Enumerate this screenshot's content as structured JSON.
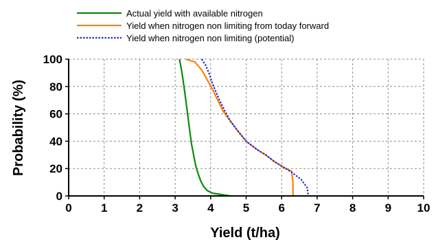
{
  "chart_data": {
    "type": "line",
    "title": "",
    "xlabel": "Yield (t/ha)",
    "ylabel": "Probability (%)",
    "xlim": [
      0,
      10
    ],
    "ylim": [
      0,
      100
    ],
    "xticks": [
      "0",
      "1",
      "2",
      "3",
      "4",
      "5",
      "6",
      "7",
      "8",
      "9",
      "10"
    ],
    "yticks": [
      "0",
      "20",
      "40",
      "60",
      "80",
      "100"
    ],
    "grid": true,
    "legend_position": "top",
    "series": [
      {
        "name": "Actual yield with available nitrogen",
        "color": "#0a8a0a",
        "dash": "solid",
        "x": [
          3.12,
          3.18,
          3.22,
          3.26,
          3.3,
          3.34,
          3.38,
          3.42,
          3.46,
          3.52,
          3.58,
          3.65,
          3.72,
          3.8,
          3.9,
          4.05,
          4.3,
          4.55
        ],
        "y": [
          100,
          92,
          85,
          78,
          70,
          62,
          54,
          46,
          38,
          30,
          22,
          16,
          11,
          7,
          4,
          2,
          1,
          0
        ]
      },
      {
        "name": "Yield when nitrogen non limiting from today forward",
        "color": "#ff8000",
        "dash": "solid",
        "x": [
          3.3,
          3.55,
          3.75,
          3.9,
          4.05,
          4.2,
          4.35,
          4.55,
          4.75,
          5.0,
          5.3,
          5.55,
          5.8,
          6.05,
          6.28,
          6.32,
          6.32
        ],
        "y": [
          100,
          98,
          92,
          85,
          78,
          70,
          62,
          55,
          48,
          40,
          34,
          30,
          25,
          21,
          18,
          10,
          0
        ]
      },
      {
        "name": "Yield when nitrogen non limiting (potential)",
        "color": "#1a2bd8",
        "dash": "dotted",
        "x": [
          3.75,
          3.85,
          3.95,
          4.05,
          4.15,
          4.25,
          4.4,
          4.55,
          4.75,
          5.0,
          5.3,
          5.55,
          5.8,
          6.05,
          6.3,
          6.55,
          6.72,
          6.75
        ],
        "y": [
          100,
          96,
          90,
          82,
          76,
          70,
          62,
          55,
          48,
          40,
          34,
          30,
          25,
          21,
          17,
          12,
          6,
          0
        ]
      }
    ]
  }
}
